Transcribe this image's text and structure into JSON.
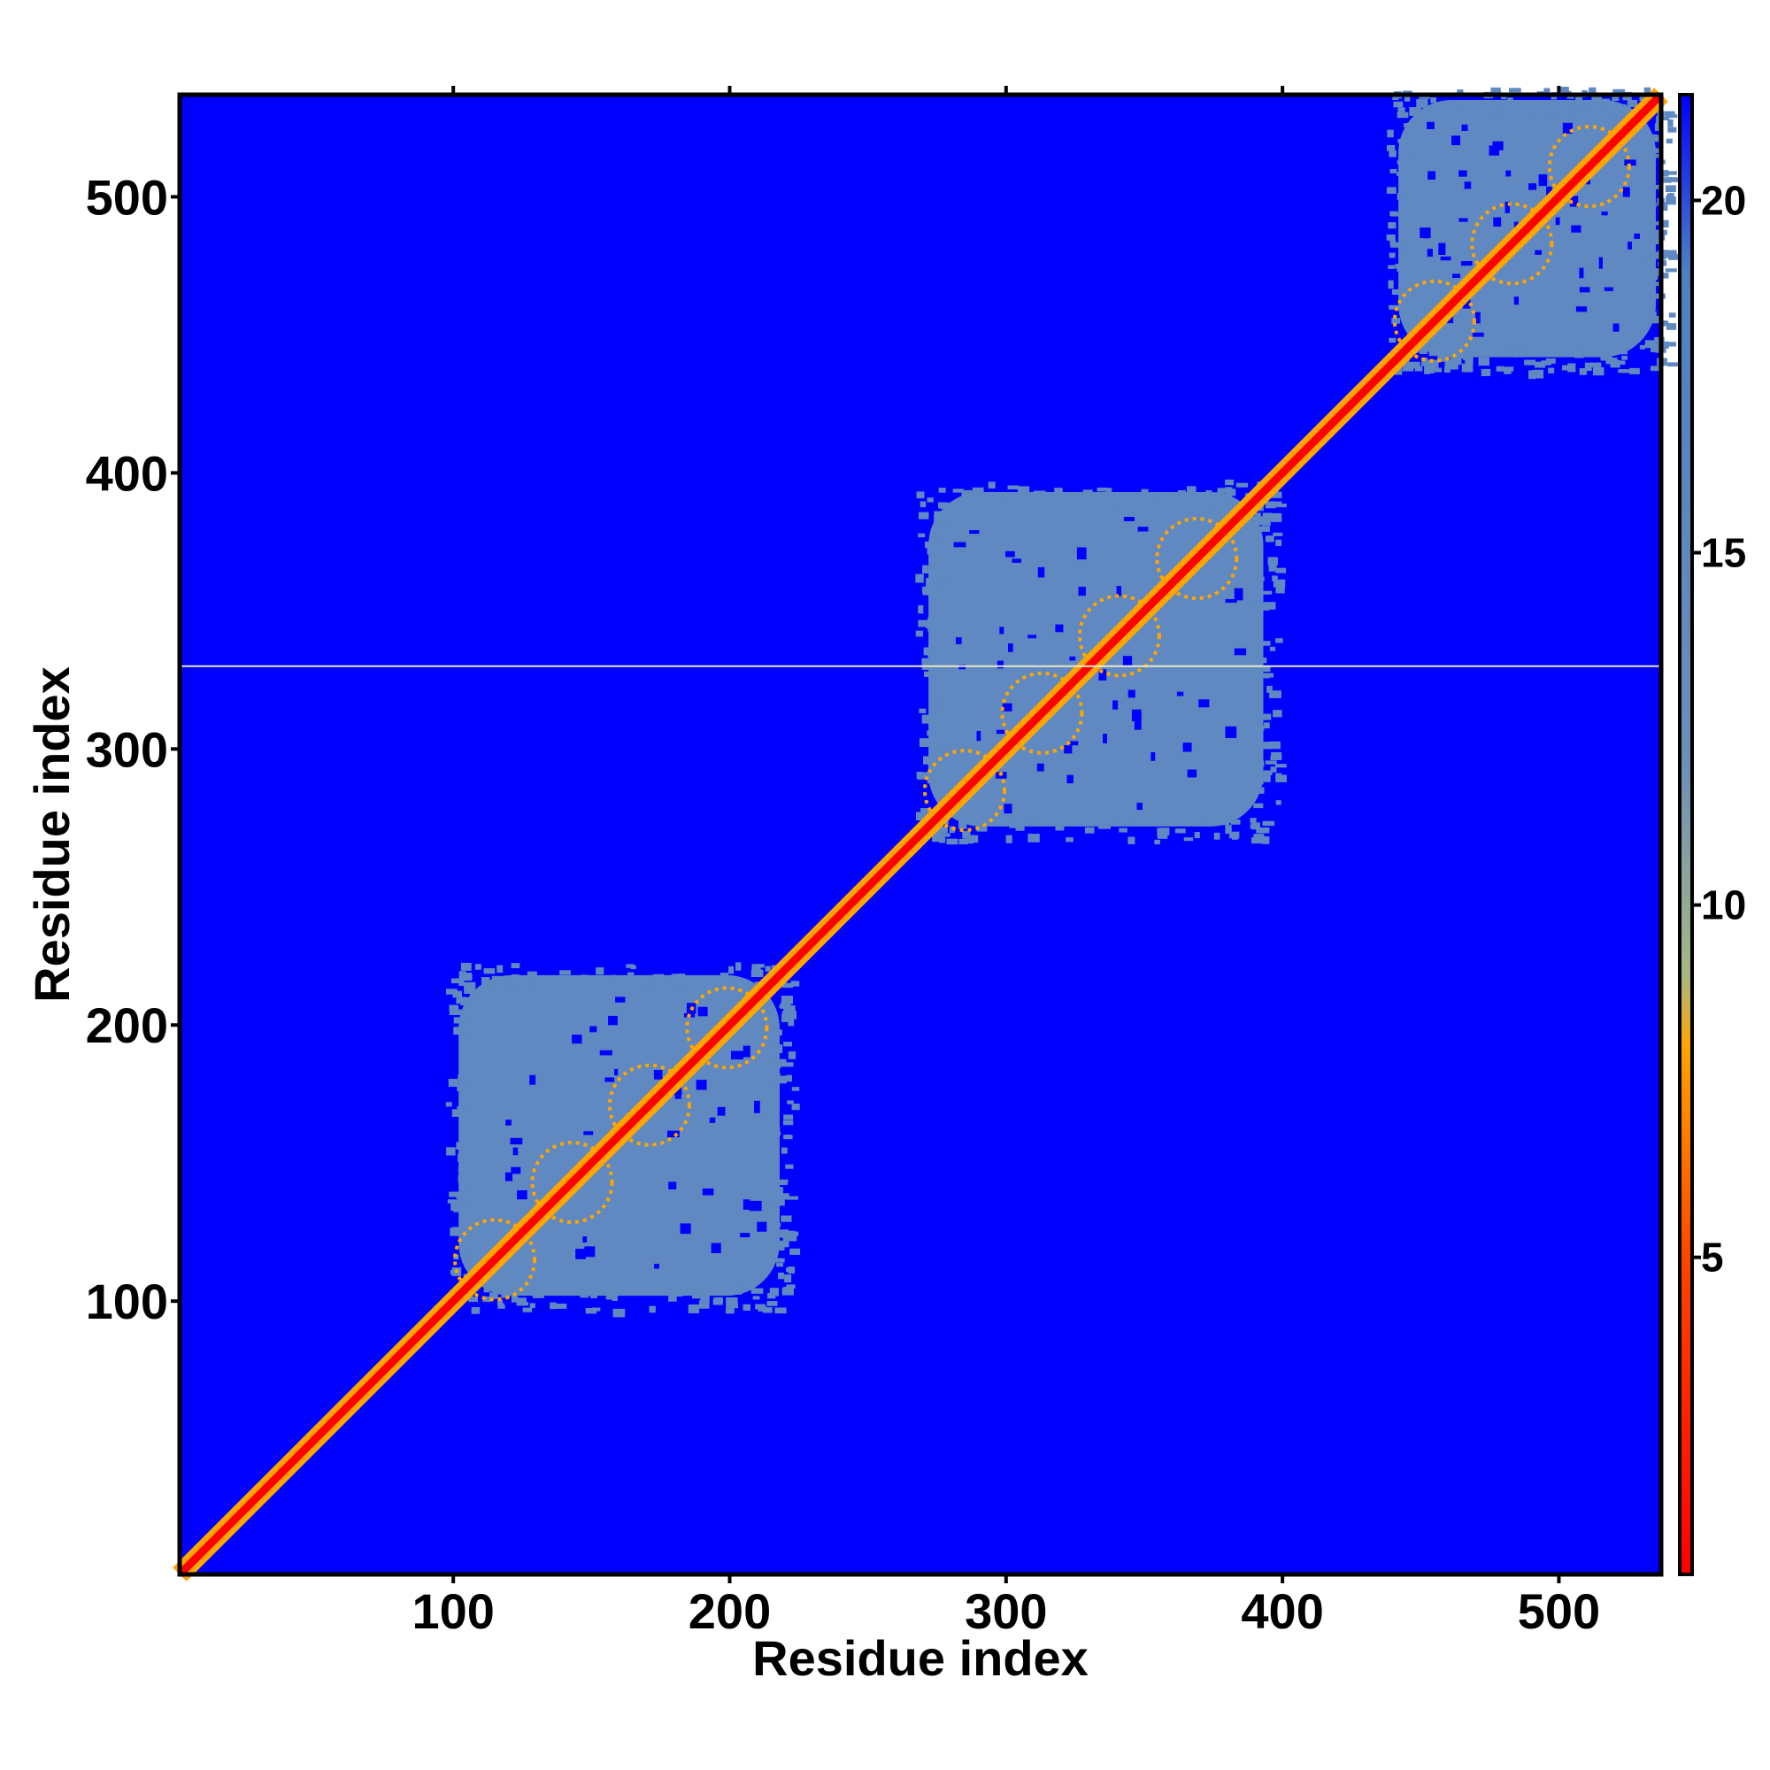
{
  "chart_data": {
    "type": "heatmap",
    "title": "",
    "xlabel": "Residue index",
    "ylabel": "Residue index",
    "n_residues": 537,
    "xlim": [
      1,
      537
    ],
    "ylim": [
      1,
      537
    ],
    "x_ticks": [
      100,
      200,
      300,
      400,
      500
    ],
    "y_ticks": [
      100,
      200,
      300,
      400,
      500
    ],
    "colorbar": {
      "ticks": [
        5,
        10,
        15,
        20
      ],
      "range": [
        0.5,
        21.5
      ],
      "stops": [
        {
          "value": 0.5,
          "color": "#ff0000"
        },
        {
          "value": 5,
          "color": "#ff4500"
        },
        {
          "value": 8,
          "color": "#ffa500"
        },
        {
          "value": 9,
          "color": "#a7b783"
        },
        {
          "value": 12,
          "color": "#6c8fb8"
        },
        {
          "value": 19,
          "color": "#4f7fc0"
        },
        {
          "value": 21.5,
          "color": "#0000ff"
        }
      ]
    },
    "background_value": 21,
    "diagonal": {
      "value": 2,
      "band_width": 3
    },
    "domains": [
      {
        "start": 100,
        "end": 220,
        "value": 17
      },
      {
        "start": 270,
        "end": 395,
        "value": 17
      },
      {
        "start": 440,
        "end": 537,
        "value": 17
      }
    ],
    "gap_rows": [
      330
    ],
    "grid": false,
    "legend": "colorbar-right"
  },
  "colors": {
    "far": "#0000ff",
    "domain": "#5f89c0",
    "near": "#ffa500",
    "contact": "#ff0000",
    "frame": "#000000"
  }
}
